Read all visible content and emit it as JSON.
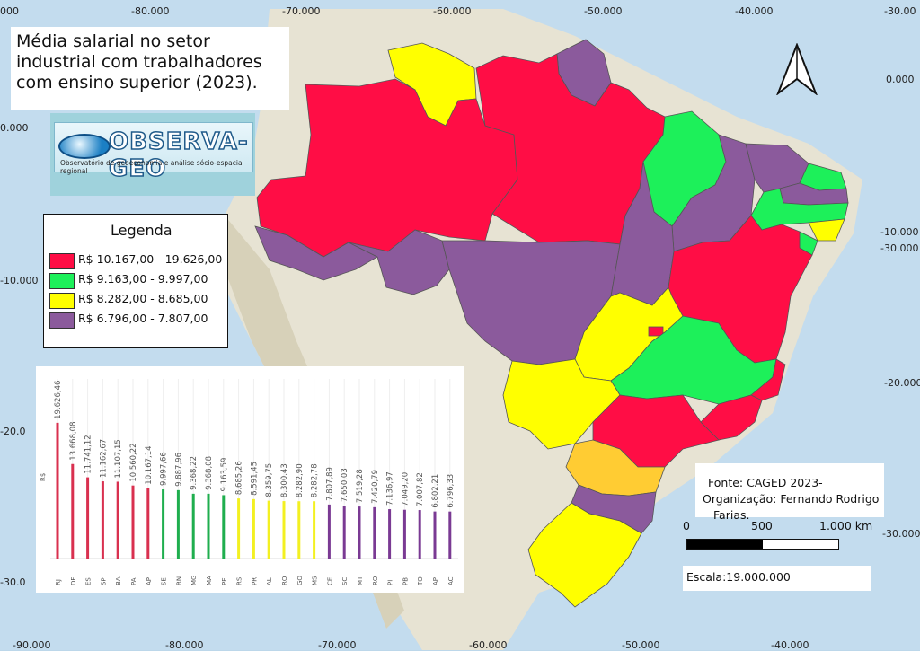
{
  "title": "Média salarial no setor industrial com trabalhadores com ensino superior (2023).",
  "logo": {
    "name": "OBSERVA-GEO",
    "subtitle": "Observatório de geoeconomia e análise sócio-espacial regional"
  },
  "legend": {
    "title": "Legenda",
    "classes": [
      {
        "label": "R$ 10.167,00 - 19.626,00",
        "color": "#ff0d45"
      },
      {
        "label": "R$ 9.163,00 - 9.997,00",
        "color": "#1df05a"
      },
      {
        "label": "R$ 8.282,00 - 8.685,00",
        "color": "#ffff00"
      },
      {
        "label": "R$ 6.796,00 - 7.807,00",
        "color": "#8b5a9c"
      }
    ]
  },
  "coords": {
    "top": [
      "000",
      "-80.000",
      "-70.000",
      "-60.000",
      "-50.000",
      "-40.000",
      "-30.00"
    ],
    "bottom": [
      "-90.000",
      "-80.000",
      "-70.000",
      "-60.000",
      "-50.000",
      "-40.000"
    ],
    "left": [
      "0.000",
      "-10.000",
      "-20.0",
      "-30.0"
    ],
    "right": [
      "0.000",
      "-10.000",
      "-30.000",
      "-20.000",
      "-30.000"
    ]
  },
  "chart_data": {
    "type": "bar",
    "ylabel": "R$",
    "categories": [
      "RJ",
      "DF",
      "ES",
      "SP",
      "BA",
      "PA",
      "AP",
      "SE",
      "RN",
      "MG",
      "MA",
      "PE",
      "RS",
      "PR",
      "AL",
      "RO",
      "GO",
      "MS",
      "CE",
      "SC",
      "MT",
      "RO",
      "PI",
      "PB",
      "TO",
      "AP",
      "AC"
    ],
    "values": [
      19626.46,
      13668.08,
      11741.12,
      11162.67,
      11107.15,
      10560.22,
      10167.14,
      9997.66,
      9887.96,
      9368.22,
      9368.08,
      9163.59,
      8685.26,
      8591.45,
      8359.75,
      8300.43,
      8282.9,
      8282.78,
      7807.89,
      7650.03,
      7519.28,
      7420.79,
      7136.97,
      7049.2,
      7007.82,
      6802.21,
      6796.33
    ],
    "labels": [
      "19.626,46",
      "13.668,08",
      "11.741,12",
      "11.162,67",
      "11.107,15",
      "10.560,22",
      "10.167,14",
      "9.997,66",
      "9.887,96",
      "9.368,22",
      "9.368,08",
      "9.163,59",
      "8.685,26",
      "8.591,45",
      "8.359,75",
      "8.300,43",
      "8.282,90",
      "8.282,78",
      "7.807,89",
      "7.650,03",
      "7.519,28",
      "7.420,79",
      "7.136,97",
      "7.049,20",
      "7.007,82",
      "6.802,21",
      "6.796,33"
    ],
    "class_index": [
      0,
      0,
      0,
      0,
      0,
      0,
      0,
      1,
      1,
      1,
      1,
      1,
      2,
      2,
      2,
      2,
      2,
      2,
      3,
      3,
      3,
      3,
      3,
      3,
      3,
      3,
      3
    ],
    "ylim": [
      0,
      20000
    ]
  },
  "source": {
    "line1": "Fonte: CAGED 2023-",
    "line2": "Organização: Fernando Rodrigo",
    "line3": "Farias."
  },
  "scalebar": {
    "labels": [
      "0",
      "500",
      "1.000 km"
    ]
  },
  "scale": "Escala:19.000.000"
}
